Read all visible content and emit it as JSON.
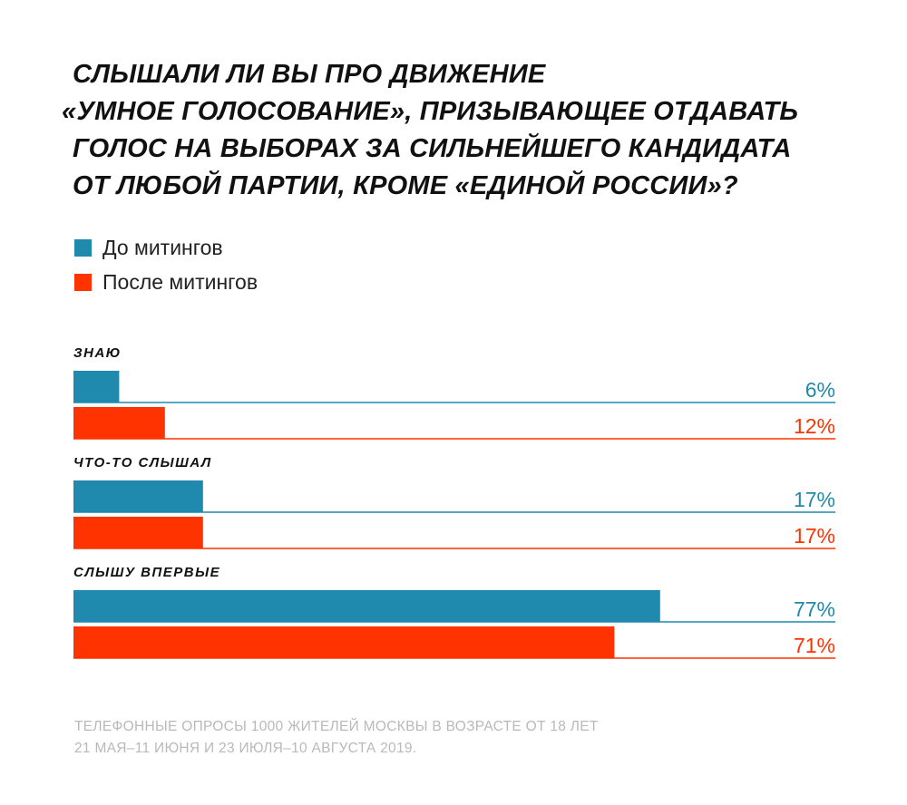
{
  "title_lines": [
    "СЛЫШАЛИ ЛИ ВЫ ПРО ДВИЖЕНИЕ",
    "«УМНОЕ ГОЛОСОВАНИЕ», ПРИЗЫВАЮЩЕЕ ОТДАВАТЬ",
    "ГОЛОС НА ВЫБОРАХ ЗА СИЛЬНЕЙШЕГО КАНДИДАТА",
    "ОТ ЛЮБОЙ ПАРТИИ, КРОМЕ «ЕДИНОЙ РОССИИ»?"
  ],
  "legend": [
    {
      "label": "До митингов",
      "color": "#1f8aad"
    },
    {
      "label": "После митингов",
      "color": "#ff3300"
    }
  ],
  "chart_data": {
    "type": "bar",
    "orientation": "horizontal",
    "xlim": [
      0,
      100
    ],
    "categories": [
      "ЗНАЮ",
      "ЧТО-ТО СЛЫШАЛ",
      "СЛЫШУ ВПЕРВЫЕ"
    ],
    "series": [
      {
        "name": "До митингов",
        "values": [
          6,
          17,
          77
        ],
        "labels": [
          "6%",
          "17%",
          "77%"
        ],
        "color": "#1f8aad"
      },
      {
        "name": "После митингов",
        "values": [
          12,
          17,
          71
        ],
        "labels": [
          "12%",
          "17%",
          "71%"
        ],
        "color": "#ff3300"
      }
    ]
  },
  "footnote_lines": [
    "ТЕЛЕФОННЫЕ ОПРОСЫ 1000 ЖИТЕЛЕЙ МОСКВЫ В ВОЗРАСТЕ ОТ 18 ЛЕТ",
    "21 МАЯ–11 ИЮНЯ И 23 ИЮЛЯ–10 АВГУСТА 2019."
  ]
}
